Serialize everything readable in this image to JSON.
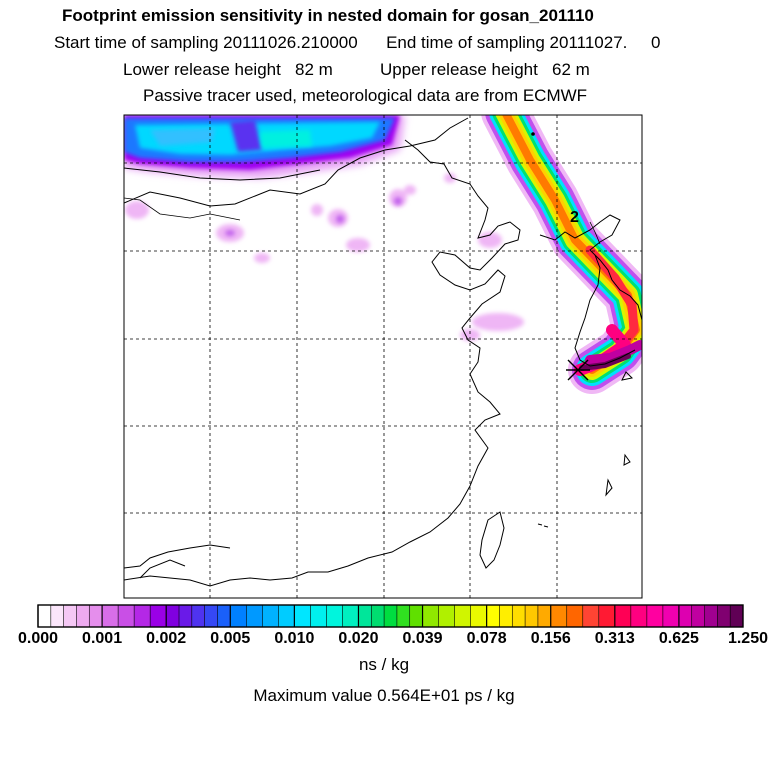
{
  "header": {
    "title": "Footprint emission sensitivity in nested domain for gosan_201110",
    "start_label": "Start time of sampling",
    "start_value": "20111026.210000",
    "end_label": "End time of sampling",
    "end_value": "20111027.",
    "end_suffix": "0",
    "lower_label": "Lower release height",
    "lower_value": "82 m",
    "upper_label": "Upper release height",
    "upper_value": "62 m",
    "info": "Passive tracer used, meteorological data are from ECMWF"
  },
  "map": {
    "contour_label": "2",
    "receptor_marker": "x-marker-icon",
    "colors": {
      "coast": "#000000",
      "grid": "#000000"
    }
  },
  "colorbar": {
    "tick_labels": [
      "0.000",
      "0.001",
      "0.002",
      "0.005",
      "0.010",
      "0.020",
      "0.039",
      "0.078",
      "0.156",
      "0.313",
      "0.625",
      "1.250"
    ],
    "bins": [
      [
        "#ffffff",
        "#fbe6fb",
        "#f5c8f5",
        "#eeaaf0",
        "#e58eec"
      ],
      [
        "#d86ee8",
        "#c94fe6",
        "#b428e6",
        "#9a00e6"
      ],
      [
        "#8000e0",
        "#6a1ae8",
        "#4f33f0",
        "#3548f5",
        "#1a60fa"
      ],
      [
        "#0080ff",
        "#0099ff",
        "#00b2ff",
        "#00ccff"
      ],
      [
        "#00e6ff",
        "#00f0ee",
        "#00f5dd",
        "#00f0c0"
      ],
      [
        "#00e69a",
        "#00dd70",
        "#00dd40",
        "#30e020",
        "#60e000"
      ],
      [
        "#90e800",
        "#b0f000",
        "#d0f500",
        "#eafa00"
      ],
      [
        "#ffff00",
        "#ffee00",
        "#ffdd00",
        "#ffc800",
        "#ffaa00"
      ],
      [
        "#ff8800",
        "#ff6600",
        "#ff4433",
        "#ff1a33"
      ],
      [
        "#ff0055",
        "#ff0080",
        "#ff00a0",
        "#f000b0"
      ],
      [
        "#dd00b0",
        "#c000a0",
        "#a00090",
        "#800070",
        "#600055"
      ]
    ],
    "unit": "ns / kg",
    "max_label": "Maximum value",
    "max_value": "0.564E+01",
    "max_unit": "ps / kg"
  }
}
